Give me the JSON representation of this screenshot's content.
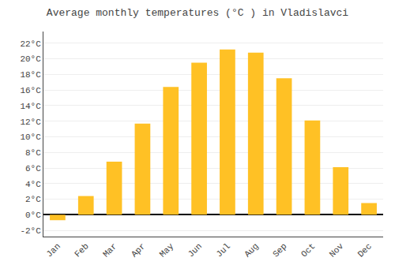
{
  "chart_data": {
    "type": "bar",
    "title": "Average monthly temperatures (°C ) in Vladislavci",
    "categories": [
      "Jan",
      "Feb",
      "Mar",
      "Apr",
      "May",
      "Jun",
      "Jul",
      "Aug",
      "Sep",
      "Oct",
      "Nov",
      "Dec"
    ],
    "values": [
      -0.7,
      2.4,
      6.8,
      11.7,
      16.4,
      19.5,
      21.2,
      20.8,
      17.5,
      12.1,
      6.1,
      1.5
    ],
    "color": "#FFC125",
    "ylim": [
      -2.8,
      23.5
    ],
    "yticks": [
      {
        "value": -2,
        "label": "-2°C"
      },
      {
        "value": 0,
        "label": "0°C"
      },
      {
        "value": 2,
        "label": "2°C"
      },
      {
        "value": 4,
        "label": "4°C"
      },
      {
        "value": 6,
        "label": "6°C"
      },
      {
        "value": 8,
        "label": "8°C"
      },
      {
        "value": 10,
        "label": "10°C"
      },
      {
        "value": 12,
        "label": "12°C"
      },
      {
        "value": 14,
        "label": "14°C"
      },
      {
        "value": 16,
        "label": "16°C"
      },
      {
        "value": 18,
        "label": "18°C"
      },
      {
        "value": 20,
        "label": "20°C"
      },
      {
        "value": 22,
        "label": "22°C"
      }
    ],
    "grid": true
  }
}
